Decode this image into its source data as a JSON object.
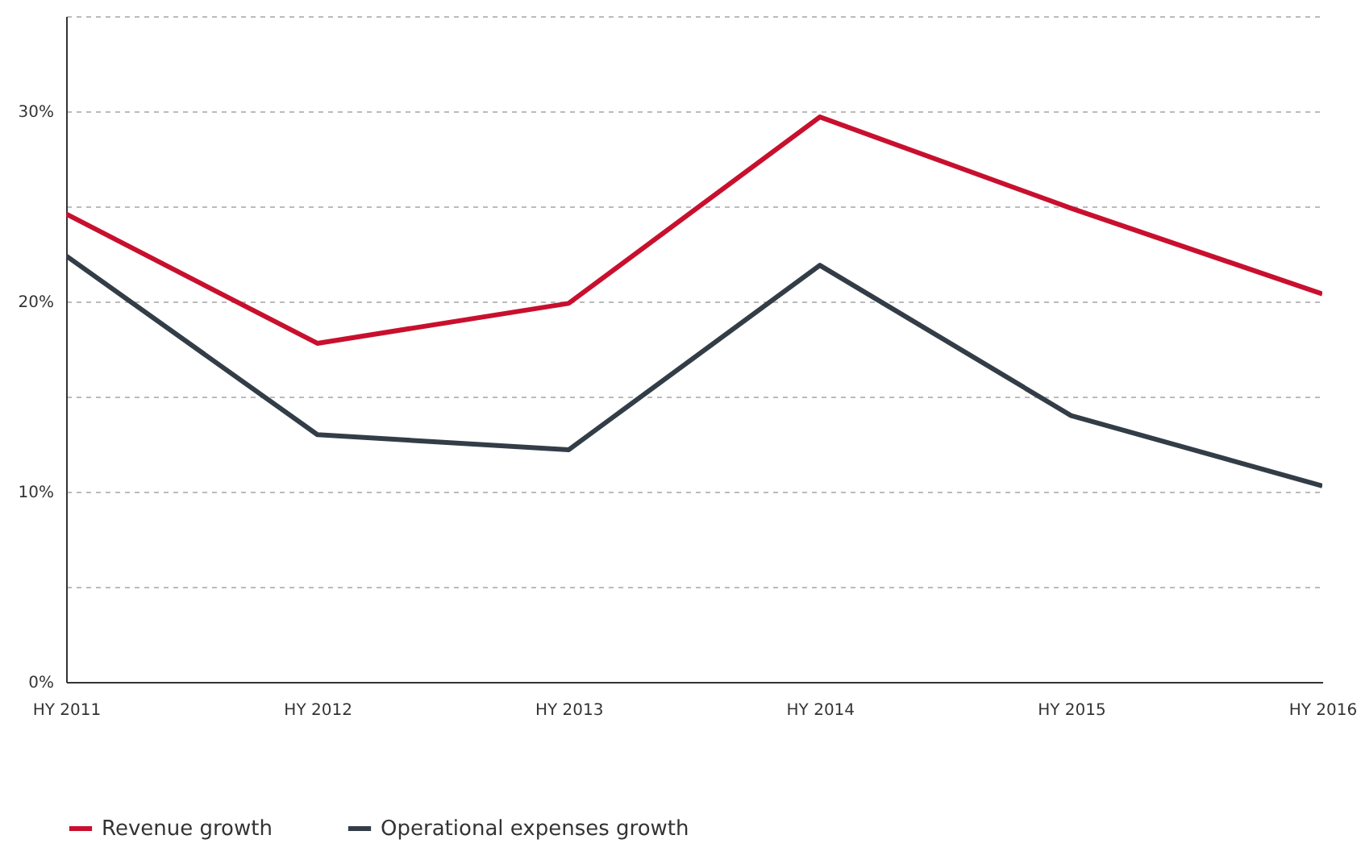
{
  "chart_data": {
    "type": "line",
    "categories": [
      "HY 2011",
      "HY 2012",
      "HY 2013",
      "HY 2014",
      "HY 2015",
      "HY 2016"
    ],
    "series": [
      {
        "name": "Revenue growth",
        "color": "#c8102e",
        "values": [
          24.6,
          17.8,
          19.9,
          29.7,
          24.9,
          20.4
        ]
      },
      {
        "name": "Operational expenses growth",
        "color": "#333d47",
        "values": [
          22.4,
          13.0,
          12.2,
          21.9,
          14.0,
          10.3
        ]
      }
    ],
    "ylim": [
      0,
      35
    ],
    "yticks": [
      {
        "value": 0,
        "label": "0%"
      },
      {
        "value": 5,
        "label": null
      },
      {
        "value": 10,
        "label": "10%"
      },
      {
        "value": 15,
        "label": null
      },
      {
        "value": 20,
        "label": "20%"
      },
      {
        "value": 25,
        "label": null
      },
      {
        "value": 30,
        "label": "30%"
      },
      {
        "value": 35,
        "label": null
      }
    ],
    "grid": "y",
    "legend": "bottom",
    "marker": "none",
    "line_style": "solid"
  }
}
